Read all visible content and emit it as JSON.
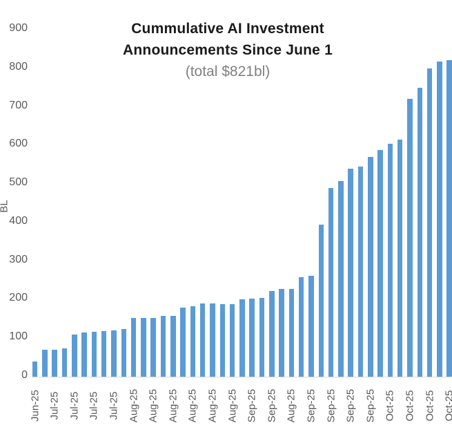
{
  "title": {
    "line1": "Cummulative AI Investment",
    "line2": "Announcements Since June 1",
    "subtitle": "(total $821bl)"
  },
  "chart_data": {
    "type": "bar",
    "title": "Cummulative AI Investment Announcements Since June 1",
    "subtitle": "(total $821bl)",
    "xlabel": "",
    "ylabel": "BL",
    "ylim": [
      0,
      900
    ],
    "y_ticks": [
      0,
      100,
      200,
      300,
      400,
      500,
      600,
      700,
      800,
      900
    ],
    "grid": false,
    "legend": false,
    "bar_color": "#5B9BD5",
    "label_every": 2,
    "x_tick_labels": [
      "Jun-25",
      "Jul-25",
      "Jul-25",
      "Jul-25",
      "Jul-25",
      "Aug-25",
      "Aug-25",
      "Aug-25",
      "Aug-25",
      "Aug-25",
      "Aug-25",
      "Sep-25",
      "Sep-25",
      "Aug-25",
      "Sep-25",
      "Sep-25",
      "Sep-25",
      "Sep-25",
      "Oct-25",
      "Oct-25",
      "Oct-25",
      "Oct-25"
    ],
    "values": [
      40,
      70,
      70,
      73,
      110,
      115,
      117,
      119,
      121,
      123,
      152,
      152,
      153,
      157,
      158,
      180,
      182,
      190,
      190,
      189,
      189,
      200,
      202,
      204,
      223,
      227,
      228,
      258,
      262,
      395,
      490,
      507,
      540,
      545,
      570,
      588,
      605,
      615,
      720,
      750,
      800,
      818,
      821
    ],
    "total_label_value": "821"
  },
  "colors": {
    "bar": "#5B9BD5",
    "axis_text": "#595959",
    "subtitle_text": "#808080",
    "axis_line": "#d9d9d9"
  }
}
